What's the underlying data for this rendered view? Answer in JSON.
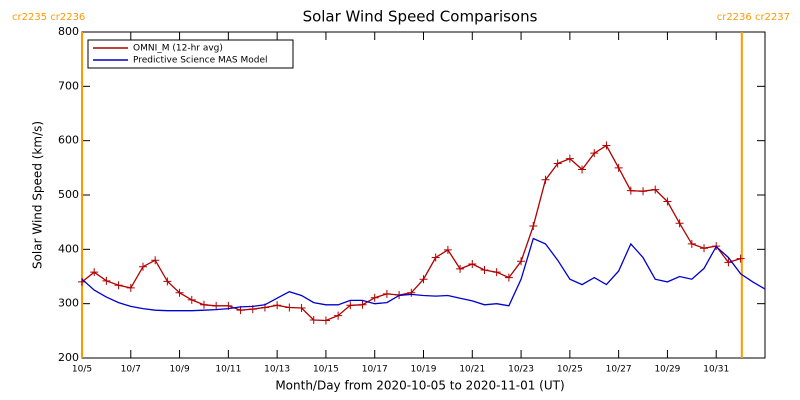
{
  "chart_data": {
    "type": "line",
    "title": "Solar Wind Speed Comparisons",
    "xlabel": "Month/Day from 2020-10-05 to 2020-11-01 (UT)",
    "ylabel": "Solar Wind Speed (km/s)",
    "xlim": [
      0,
      28
    ],
    "ylim": [
      200,
      800
    ],
    "yticks": [
      200,
      300,
      400,
      500,
      600,
      700,
      800
    ],
    "xticks": [
      {
        "value": 0,
        "label": "10/5"
      },
      {
        "value": 2,
        "label": "10/7"
      },
      {
        "value": 4,
        "label": "10/9"
      },
      {
        "value": 6,
        "label": "10/11"
      },
      {
        "value": 8,
        "label": "10/13"
      },
      {
        "value": 10,
        "label": "10/15"
      },
      {
        "value": 12,
        "label": "10/17"
      },
      {
        "value": 14,
        "label": "10/19"
      },
      {
        "value": 16,
        "label": "10/21"
      },
      {
        "value": 18,
        "label": "10/23"
      },
      {
        "value": 20,
        "label": "10/25"
      },
      {
        "value": 22,
        "label": "10/27"
      },
      {
        "value": 24,
        "label": "10/29"
      },
      {
        "value": 26,
        "label": "10/31"
      }
    ],
    "legend": "upper left",
    "annotations": [
      {
        "x": 0,
        "label": "cr2235 cr2236",
        "color": "#ff9900"
      },
      {
        "x": 27.05,
        "label": "cr2236 cr2237",
        "color": "#ff9900"
      }
    ],
    "series": [
      {
        "name": "OMNI_M (12-hr avg)",
        "color": "#b00000",
        "marker": "+",
        "x": [
          0,
          0.5,
          1,
          1.5,
          2,
          2.5,
          3,
          3.5,
          4,
          4.5,
          5,
          5.5,
          6,
          6.5,
          7,
          7.5,
          8,
          8.5,
          9,
          9.5,
          10,
          10.5,
          11,
          11.5,
          12,
          12.5,
          13,
          13.5,
          14,
          14.5,
          15,
          15.5,
          16,
          16.5,
          17,
          17.5,
          18,
          18.5,
          19,
          19.5,
          20,
          20.5,
          21,
          21.5,
          22,
          22.5,
          23,
          23.5,
          24,
          24.5,
          25,
          25.5,
          26,
          26.5,
          27
        ],
        "values": [
          340,
          358,
          342,
          334,
          329,
          368,
          380,
          341,
          320,
          307,
          298,
          296,
          296,
          288,
          290,
          293,
          297,
          293,
          292,
          270,
          269,
          278,
          297,
          298,
          311,
          318,
          316,
          320,
          345,
          385,
          399,
          364,
          373,
          362,
          358,
          348,
          378,
          443,
          528,
          558,
          567,
          547,
          577,
          591,
          550,
          508,
          507,
          510,
          488,
          448,
          410,
          402,
          406,
          376,
          383
        ]
      },
      {
        "name": "Predictive Science MAS Model",
        "color": "#0000cc",
        "x": [
          0,
          0.5,
          1,
          1.5,
          2,
          2.5,
          3,
          3.5,
          4,
          4.5,
          5,
          5.5,
          6,
          6.5,
          7,
          7.5,
          8,
          8.5,
          9,
          9.5,
          10,
          10.5,
          11,
          11.5,
          12,
          12.5,
          13,
          13.5,
          14,
          14.5,
          15,
          15.5,
          16,
          16.5,
          17,
          17.5,
          18,
          18.5,
          19,
          19.5,
          20,
          20.5,
          21,
          21.5,
          22,
          22.5,
          23,
          23.5,
          24,
          24.5,
          25,
          25.5,
          26,
          26.5,
          27,
          27.5,
          28
        ],
        "values": [
          345,
          325,
          312,
          302,
          295,
          291,
          288,
          287,
          287,
          287,
          288,
          289,
          291,
          294,
          295,
          298,
          310,
          322,
          315,
          302,
          298,
          298,
          306,
          306,
          300,
          302,
          315,
          317,
          315,
          314,
          315,
          310,
          305,
          298,
          300,
          296,
          345,
          420,
          410,
          380,
          345,
          335,
          348,
          335,
          360,
          410,
          385,
          345,
          340,
          350,
          345,
          365,
          405,
          385,
          355,
          340,
          327
        ]
      }
    ]
  }
}
